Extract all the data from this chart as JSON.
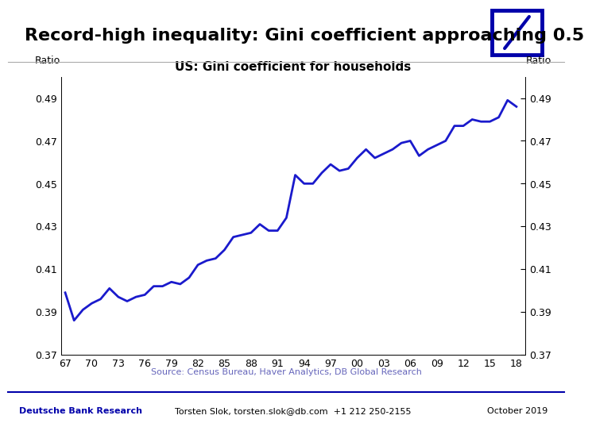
{
  "title": "Record-high inequality: Gini coefficient approaching 0.5",
  "chart_title": "US: Gini coefficient for households",
  "ylabel_left": "Ratio",
  "ylabel_right": "Ratio",
  "source_text": "Source: Census Bureau, Haver Analytics, DB Global Research",
  "footer_left": "Deutsche Bank Research",
  "footer_center": "Torsten Slok, torsten.slok@db.com  +1 212 250-2155",
  "footer_right": "October 2019",
  "ylim": [
    0.37,
    0.5
  ],
  "yticks": [
    0.37,
    0.39,
    0.41,
    0.43,
    0.45,
    0.47,
    0.49
  ],
  "line_color": "#1a1acc",
  "line_width": 2.0,
  "background_color": "#ffffff",
  "years": [
    1967,
    1968,
    1969,
    1970,
    1971,
    1972,
    1973,
    1974,
    1975,
    1976,
    1977,
    1978,
    1979,
    1980,
    1981,
    1982,
    1983,
    1984,
    1985,
    1986,
    1987,
    1988,
    1989,
    1990,
    1991,
    1992,
    1993,
    1994,
    1995,
    1996,
    1997,
    1998,
    1999,
    2000,
    2001,
    2002,
    2003,
    2004,
    2005,
    2006,
    2007,
    2008,
    2009,
    2010,
    2011,
    2012,
    2013,
    2014,
    2015,
    2016,
    2017,
    2018
  ],
  "values": [
    0.399,
    0.386,
    0.391,
    0.394,
    0.396,
    0.401,
    0.397,
    0.395,
    0.397,
    0.398,
    0.402,
    0.402,
    0.404,
    0.403,
    0.406,
    0.412,
    0.414,
    0.415,
    0.419,
    0.425,
    0.426,
    0.427,
    0.431,
    0.428,
    0.428,
    0.434,
    0.454,
    0.45,
    0.45,
    0.455,
    0.459,
    0.456,
    0.457,
    0.462,
    0.466,
    0.462,
    0.464,
    0.466,
    0.469,
    0.47,
    0.463,
    0.466,
    0.468,
    0.47,
    0.477,
    0.477,
    0.48,
    0.479,
    0.479,
    0.481,
    0.489,
    0.486
  ],
  "xtick_labels": [
    "67",
    "70",
    "73",
    "76",
    "79",
    "82",
    "85",
    "88",
    "91",
    "94",
    "97",
    "00",
    "03",
    "06",
    "09",
    "12",
    "15",
    "18"
  ],
  "xtick_years": [
    1967,
    1970,
    1973,
    1976,
    1979,
    1982,
    1985,
    1988,
    1991,
    1994,
    1997,
    2000,
    2003,
    2006,
    2009,
    2012,
    2015,
    2018
  ],
  "db_logo_color": "#0000aa",
  "title_fontsize": 16,
  "chart_title_fontsize": 11,
  "axis_label_fontsize": 9,
  "tick_fontsize": 9,
  "footer_fontsize": 8,
  "source_fontsize": 8,
  "separator_color": "#aaaaaa",
  "footer_line_color": "#0000aa",
  "source_color": "#6666bb",
  "xlim_left": 1966.5,
  "xlim_right": 2019.0
}
